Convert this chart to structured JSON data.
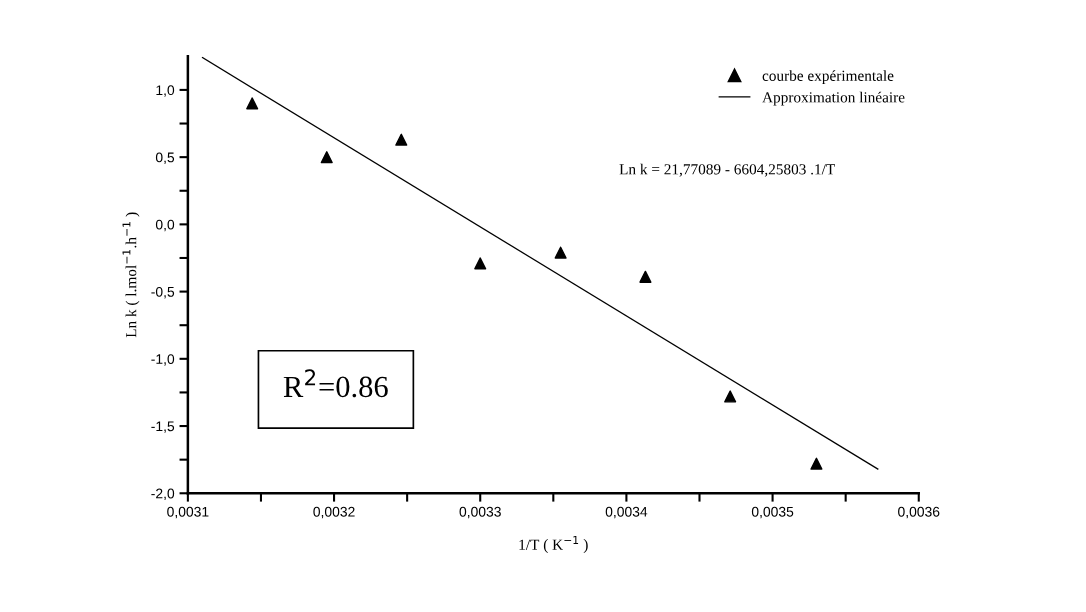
{
  "chart_data": {
    "type": "scatter",
    "xlabel": "1/T ( K$^{−1}$ )",
    "ylabel": "Ln k ( l.mol$^{−1}$.h$^{−1}$ )",
    "series": [
      {
        "name": "courbe expérimentale",
        "color": "#000000",
        "marker": "triangle",
        "x": [
          0.003144,
          0.003195,
          0.003246,
          0.0033,
          0.003355,
          0.003413,
          0.003471,
          0.00353
        ],
        "values": [
          0.9,
          0.5,
          0.63,
          -0.29,
          -0.21,
          -0.39,
          -1.28,
          -1.78
        ]
      },
      {
        "name": "Approximation linéaire",
        "type": "line",
        "color": "#000000",
        "line_style": "solid",
        "x": [
          0.00311,
          0.003572
        ],
        "values": [
          1.24,
          -1.82
        ]
      }
    ],
    "xlim": [
      0.0031,
      0.0036
    ],
    "ylim": [
      -2.0,
      1.25
    ],
    "xticks": [
      {
        "value": 0.0031,
        "label": "0,0031"
      },
      {
        "value": 0.00315,
        "label": null
      },
      {
        "value": 0.0032,
        "label": "0,0032"
      },
      {
        "value": 0.00325,
        "label": null
      },
      {
        "value": 0.0033,
        "label": "0,0033"
      },
      {
        "value": 0.00335,
        "label": null
      },
      {
        "value": 0.0034,
        "label": "0,0034"
      },
      {
        "value": 0.00345,
        "label": null
      },
      {
        "value": 0.0035,
        "label": "0,0035"
      },
      {
        "value": 0.00355,
        "label": null
      },
      {
        "value": 0.0036,
        "label": "0,0036"
      }
    ],
    "yticks": [
      {
        "value": -2.0,
        "label": "-2,0"
      },
      {
        "value": -1.75,
        "label": null
      },
      {
        "value": -1.5,
        "label": "-1,5"
      },
      {
        "value": -1.25,
        "label": null
      },
      {
        "value": -1.0,
        "label": "-1,0"
      },
      {
        "value": -0.75,
        "label": null
      },
      {
        "value": -0.5,
        "label": "-0,5"
      },
      {
        "value": -0.25,
        "label": null
      },
      {
        "value": 0.0,
        "label": "0,0"
      },
      {
        "value": 0.25,
        "label": null
      },
      {
        "value": 0.5,
        "label": "0,5"
      },
      {
        "value": 0.75,
        "label": null
      },
      {
        "value": 1.0,
        "label": "1,0"
      }
    ],
    "annotations": [
      "Ln k = 21,77089 - 6604,25803 .1/T",
      "R$^{2}$=0.86"
    ],
    "legend": "top right",
    "grid": false
  }
}
